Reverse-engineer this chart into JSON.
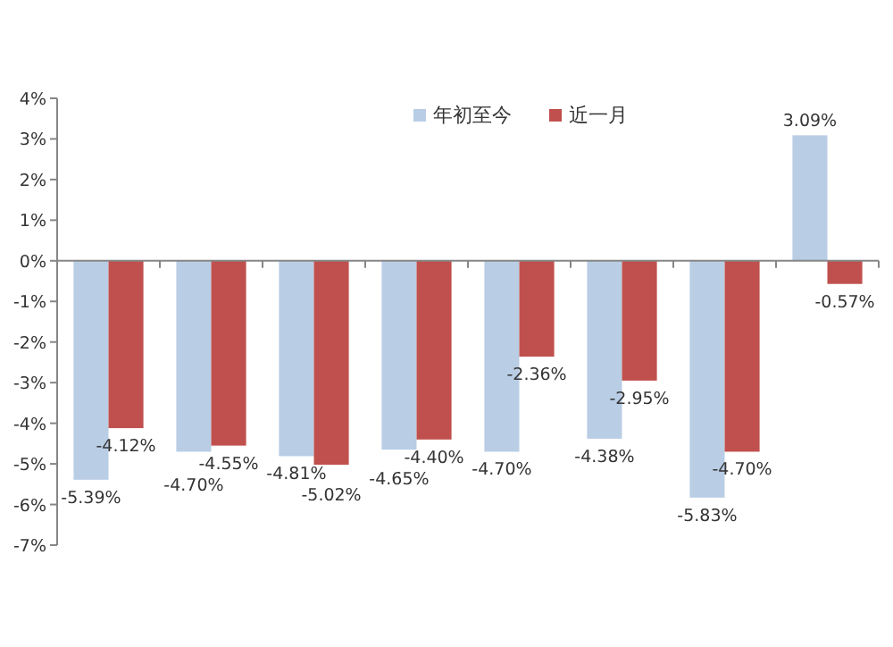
{
  "chart_data": {
    "type": "bar",
    "categories": [
      null,
      null,
      null,
      null,
      null,
      null,
      null,
      null
    ],
    "series": [
      {
        "name": "年初至今",
        "color": "#b9cde5",
        "values": [
          -5.39,
          -4.7,
          -4.81,
          -4.65,
          -4.7,
          -4.38,
          -5.83,
          3.09
        ],
        "value_labels": [
          "-5.39%",
          "-4.70%",
          "-4.81%",
          "-4.65%",
          "-4.70%",
          "-4.38%",
          "-5.83%",
          "3.09%"
        ]
      },
      {
        "name": "近一月",
        "color": "#c0504d",
        "values": [
          -4.12,
          -4.55,
          -5.02,
          -4.4,
          -2.36,
          -2.95,
          -4.7,
          -0.57
        ],
        "value_labels": [
          "-4.12%",
          "-4.55%",
          "-5.02%",
          "-4.40%",
          "-2.36%",
          "-2.95%",
          "-4.70%",
          "-0.57%"
        ]
      }
    ],
    "ylim": [
      -7,
      4
    ],
    "yticks": [
      {
        "value": 4,
        "label": "4%"
      },
      {
        "value": 3,
        "label": "3%"
      },
      {
        "value": 2,
        "label": "2%"
      },
      {
        "value": 1,
        "label": "1%"
      },
      {
        "value": 0,
        "label": "0%"
      },
      {
        "value": -1,
        "label": "-1%"
      },
      {
        "value": -2,
        "label": "-2%"
      },
      {
        "value": -3,
        "label": "-3%"
      },
      {
        "value": -4,
        "label": "-4%"
      },
      {
        "value": -5,
        "label": "-5%"
      },
      {
        "value": -6,
        "label": "-6%"
      },
      {
        "value": -7,
        "label": "-7%"
      }
    ],
    "legend": "top"
  }
}
